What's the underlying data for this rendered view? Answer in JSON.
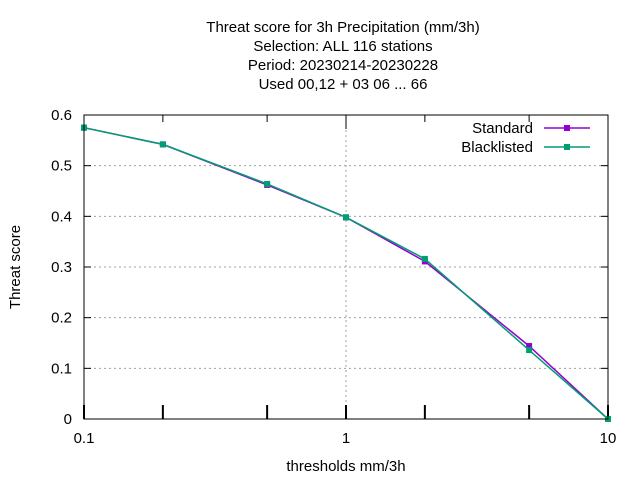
{
  "chart_data": {
    "type": "line",
    "title": [
      "Threat score  for 3h Precipitation (mm/3h)",
      "Selection: ALL     116 stations",
      "Period: 20230214-20230228",
      "Used  00,12  + 03 06 ... 66"
    ],
    "xlabel": "thresholds mm/3h",
    "ylabel": "Threat score",
    "xscale": "log",
    "xlim": [
      0.1,
      10
    ],
    "ylim": [
      0,
      0.6
    ],
    "xticks": [
      0.1,
      1,
      10
    ],
    "xtick_labels": [
      "0.1",
      "1",
      "10"
    ],
    "xminor_ticks": [
      0.2,
      0.5,
      2,
      5
    ],
    "yticks": [
      0,
      0.1,
      0.2,
      0.3,
      0.4,
      0.5,
      0.6
    ],
    "ytick_labels": [
      "0",
      "0.1",
      "0.2",
      "0.3",
      "0.4",
      "0.5",
      "0.6"
    ],
    "grid": true,
    "legend_position": "top-right",
    "x": [
      0.1,
      0.2,
      0.5,
      1,
      2,
      5,
      10
    ],
    "series": [
      {
        "name": "Standard",
        "color": "#9400d3",
        "values": [
          0.575,
          0.542,
          0.462,
          0.398,
          0.311,
          0.144,
          0.0
        ]
      },
      {
        "name": "Blacklisted",
        "color": "#009e73",
        "values": [
          0.575,
          0.542,
          0.464,
          0.398,
          0.316,
          0.136,
          0.0
        ]
      }
    ]
  }
}
